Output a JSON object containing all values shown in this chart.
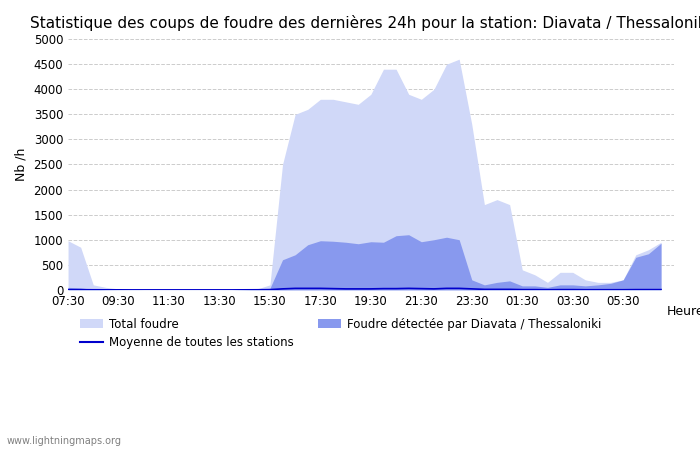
{
  "title": "Statistique des coups de foudre des dernières 24h pour la station: Diavata / Thessaloniki",
  "xlabel": "Heure",
  "ylabel": "Nb /h",
  "watermark": "www.lightningmaps.org",
  "xlim_start": 0,
  "xlim_end": 24,
  "ylim": [
    0,
    5000
  ],
  "yticks": [
    0,
    500,
    1000,
    1500,
    2000,
    2500,
    3000,
    3500,
    4000,
    4500,
    5000
  ],
  "xtick_labels": [
    "07:30",
    "09:30",
    "11:30",
    "13:30",
    "15:30",
    "17:30",
    "19:30",
    "21:30",
    "23:30",
    "01:30",
    "03:30",
    "05:30"
  ],
  "color_total": "#d0d8f8",
  "color_detected": "#8899ee",
  "color_avg_line": "#0000cc",
  "background_color": "#ffffff",
  "grid_color": "#cccccc",
  "title_fontsize": 11,
  "tick_fontsize": 8.5,
  "label_fontsize": 9,
  "legend_fontsize": 8.5,
  "x_hours": [
    0,
    0.5,
    1,
    1.5,
    2,
    2.5,
    3,
    3.5,
    4,
    4.5,
    5,
    5.5,
    6,
    6.5,
    7,
    7.5,
    8,
    8.5,
    9,
    9.5,
    10,
    10.5,
    11,
    11.5,
    12,
    12.5,
    13,
    13.5,
    14,
    14.5,
    15,
    15.5,
    16,
    16.5,
    17,
    17.5,
    18,
    18.5,
    19,
    19.5,
    20,
    20.5,
    21,
    21.5,
    22,
    22.5,
    23,
    23.5
  ],
  "total_foudre": [
    980,
    850,
    100,
    50,
    20,
    10,
    5,
    5,
    5,
    5,
    5,
    5,
    5,
    5,
    10,
    20,
    100,
    2500,
    3500,
    3600,
    3800,
    3800,
    3750,
    3700,
    3900,
    4400,
    4400,
    3900,
    3800,
    4000,
    4500,
    4600,
    3300,
    1700,
    1800,
    1700,
    400,
    300,
    150,
    350,
    350,
    200,
    150,
    150,
    200,
    700,
    800,
    950
  ],
  "detected_foudre": [
    50,
    40,
    10,
    5,
    2,
    1,
    1,
    1,
    1,
    1,
    1,
    1,
    1,
    1,
    5,
    10,
    30,
    600,
    700,
    900,
    980,
    970,
    950,
    920,
    960,
    950,
    1080,
    1100,
    960,
    1000,
    1050,
    1000,
    200,
    100,
    150,
    180,
    80,
    80,
    50,
    100,
    100,
    80,
    100,
    130,
    200,
    650,
    720,
    930
  ],
  "avg_line": [
    5,
    4,
    2,
    1,
    1,
    0,
    0,
    0,
    0,
    0,
    0,
    0,
    0,
    0,
    1,
    2,
    5,
    20,
    30,
    30,
    30,
    25,
    20,
    20,
    20,
    25,
    25,
    30,
    25,
    20,
    30,
    30,
    20,
    10,
    10,
    10,
    5,
    5,
    3,
    5,
    5,
    3,
    3,
    3,
    3,
    5,
    5,
    5
  ]
}
